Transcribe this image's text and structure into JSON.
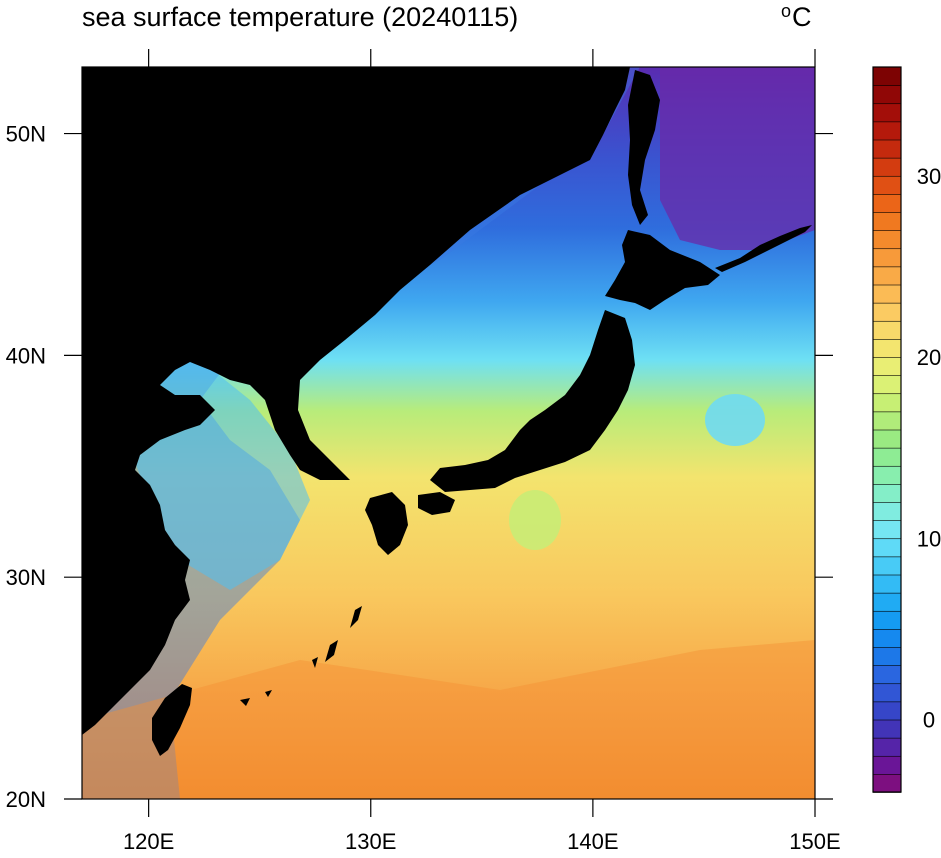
{
  "title": "sea surface temperature (20240115)",
  "unit": {
    "degree_symbol": "o",
    "letter": "C"
  },
  "map": {
    "lon_range": [
      117,
      150
    ],
    "lat_range": [
      20,
      53
    ],
    "land_color": "#000000",
    "x_ticks": [
      {
        "value": 120,
        "label": "120E"
      },
      {
        "value": 130,
        "label": "130E"
      },
      {
        "value": 140,
        "label": "140E"
      },
      {
        "value": 150,
        "label": "150E"
      }
    ],
    "y_ticks": [
      {
        "value": 20,
        "label": "20N"
      },
      {
        "value": 30,
        "label": "30N"
      },
      {
        "value": 40,
        "label": "40N"
      },
      {
        "value": 50,
        "label": "50N"
      }
    ]
  },
  "colorbar": {
    "min": -4,
    "max": 36,
    "step": 1,
    "labels": [
      0,
      10,
      20,
      30
    ],
    "colors": [
      "#7d0f80",
      "#6a1597",
      "#5524a8",
      "#4234b7",
      "#3646c8",
      "#3156d5",
      "#2a66e0",
      "#1d78e8",
      "#1589ef",
      "#159bf2",
      "#20abf3",
      "#33bbf5",
      "#48cbf6",
      "#5fdaf7",
      "#75e6f2",
      "#80ece0",
      "#84eec8",
      "#88eeae",
      "#8eec94",
      "#9aea82",
      "#b0ec7a",
      "#c7ef74",
      "#dbf175",
      "#e9ee74",
      "#f3e56f",
      "#f8d96a",
      "#fbcb62",
      "#fbbb55",
      "#f9aa47",
      "#f79a3a",
      "#f48a2c",
      "#f07920",
      "#eb6518",
      "#e05014",
      "#d33c10",
      "#c42a0e",
      "#b4190b",
      "#a30e09",
      "#900706",
      "#7d0303"
    ]
  }
}
